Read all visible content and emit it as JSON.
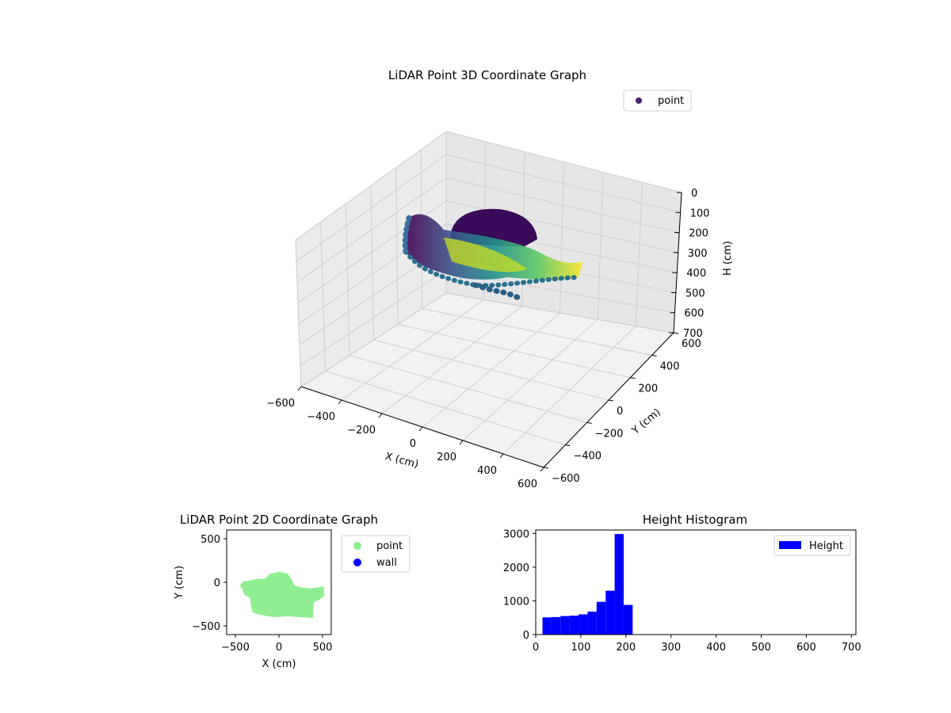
{
  "chart_data": [
    {
      "type": "scatter3d",
      "title": "LiDAR Point 3D Coordinate Graph",
      "xlabel": "X (cm)",
      "ylabel": "Y (cm)",
      "zlabel": "H (cm)",
      "xlim": [
        -600,
        600
      ],
      "ylim": [
        -600,
        600
      ],
      "zlim": [
        0,
        700
      ],
      "z_inverted": true,
      "xticks": [
        "−600",
        "−400",
        "−200",
        "0",
        "200",
        "400",
        "600"
      ],
      "yticks": [
        "−600",
        "−400",
        "−200",
        "0",
        "200",
        "400",
        "600"
      ],
      "zticks": [
        "0",
        "100",
        "200",
        "300",
        "400",
        "500",
        "600",
        "700"
      ],
      "colormap": "viridis",
      "grid": true,
      "legend": {
        "placement": "top-right",
        "entries": [
          "point"
        ]
      },
      "series": [
        {
          "name": "point",
          "color": "#482475"
        }
      ]
    },
    {
      "type": "scatter",
      "title": "LiDAR Point 2D Coordinate Graph",
      "xlabel": "X (cm)",
      "ylabel": "Y (cm)",
      "xlim": [
        -600,
        600
      ],
      "ylim": [
        -600,
        600
      ],
      "xticks": [
        "−500",
        "0",
        "500"
      ],
      "yticks": [
        "500",
        "0",
        "−500"
      ],
      "legend": {
        "placement": "outside-right",
        "entries": [
          "point",
          "wall"
        ]
      },
      "series": [
        {
          "name": "point",
          "color": "#90ee90"
        },
        {
          "name": "wall",
          "color": "#0000ff"
        }
      ],
      "region_outline": [
        [
          -420,
          -80
        ],
        [
          -400,
          -140
        ],
        [
          -330,
          -180
        ],
        [
          -320,
          -280
        ],
        [
          -300,
          -350
        ],
        [
          -180,
          -380
        ],
        [
          -60,
          -400
        ],
        [
          100,
          -390
        ],
        [
          240,
          -400
        ],
        [
          390,
          -410
        ],
        [
          400,
          -230
        ],
        [
          460,
          -200
        ],
        [
          520,
          -160
        ],
        [
          510,
          -40
        ],
        [
          450,
          -60
        ],
        [
          360,
          -70
        ],
        [
          270,
          -60
        ],
        [
          180,
          -40
        ],
        [
          140,
          40
        ],
        [
          100,
          100
        ],
        [
          0,
          120
        ],
        [
          -100,
          100
        ],
        [
          -160,
          40
        ],
        [
          -250,
          40
        ],
        [
          -330,
          20
        ],
        [
          -410,
          10
        ],
        [
          -450,
          -40
        ]
      ]
    },
    {
      "type": "bar",
      "title": "Height Histogram",
      "xlim": [
        0,
        710
      ],
      "ylim": [
        0,
        3100
      ],
      "xticks": [
        "0",
        "100",
        "200",
        "300",
        "400",
        "500",
        "600",
        "700"
      ],
      "yticks": [
        "0",
        "1000",
        "2000",
        "3000"
      ],
      "color": "#0000ff",
      "legend": {
        "placement": "top-right",
        "entries": [
          "Height"
        ]
      },
      "series": [
        {
          "name": "Height"
        }
      ],
      "bins": [
        {
          "x0": 15,
          "x1": 35,
          "value": 510
        },
        {
          "x0": 35,
          "x1": 55,
          "value": 520
        },
        {
          "x0": 55,
          "x1": 75,
          "value": 550
        },
        {
          "x0": 75,
          "x1": 95,
          "value": 560
        },
        {
          "x0": 95,
          "x1": 115,
          "value": 600
        },
        {
          "x0": 115,
          "x1": 135,
          "value": 680
        },
        {
          "x0": 135,
          "x1": 155,
          "value": 970
        },
        {
          "x0": 155,
          "x1": 175,
          "value": 1300
        },
        {
          "x0": 175,
          "x1": 195,
          "value": 2980
        },
        {
          "x0": 195,
          "x1": 215,
          "value": 880
        }
      ]
    }
  ]
}
